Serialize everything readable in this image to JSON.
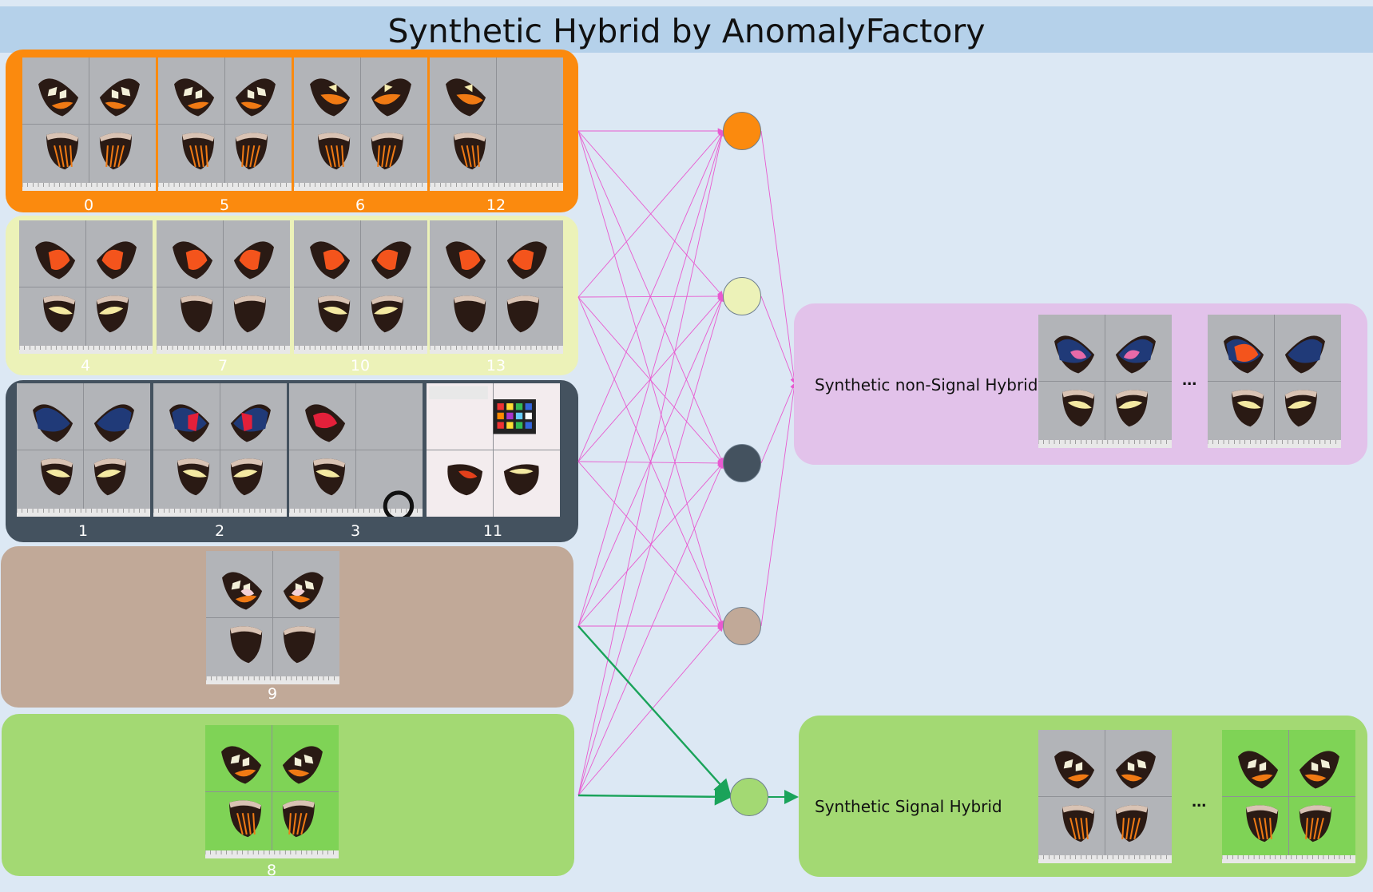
{
  "title": "Synthetic Hybrid by AnomalyFactory",
  "colors": {
    "background": "#dce8f4",
    "title_bar": "#b5d1ea",
    "orange": "#fb8a0e",
    "yellow": "#ecf2b8",
    "slate": "#44525f",
    "tan": "#c1a998",
    "green": "#a3d973",
    "pink": "#e2c2ea",
    "edge_pink": "#e85ad0",
    "edge_green": "#1aa35a"
  },
  "groups": [
    {
      "name": "orange",
      "items": [
        {
          "id": "0",
          "variant": "orange-white"
        },
        {
          "id": "5",
          "variant": "orange-white"
        },
        {
          "id": "6",
          "variant": "orange-rays"
        },
        {
          "id": "12",
          "variant": "single-orange"
        }
      ]
    },
    {
      "name": "yellow",
      "items": [
        {
          "id": "4",
          "variant": "red-yellow"
        },
        {
          "id": "7",
          "variant": "red-plain"
        },
        {
          "id": "10",
          "variant": "red-yellow"
        },
        {
          "id": "13",
          "variant": "red-plain"
        }
      ]
    },
    {
      "name": "slate",
      "items": [
        {
          "id": "1",
          "variant": "blue"
        },
        {
          "id": "2",
          "variant": "blue-red"
        },
        {
          "id": "3",
          "variant": "single-red"
        },
        {
          "id": "11",
          "variant": "chart"
        }
      ]
    },
    {
      "name": "tan",
      "items": [
        {
          "id": "9",
          "variant": "white-spots"
        }
      ]
    },
    {
      "name": "green",
      "items": [
        {
          "id": "8",
          "variant": "green-bg"
        }
      ]
    }
  ],
  "outputs": {
    "non_signal": {
      "label": "Synthetic non-Signal Hybrid",
      "ellipsis": "...",
      "images": [
        "blue-pink",
        "red-blue"
      ]
    },
    "signal": {
      "label": "Synthetic Signal Hybrid",
      "ellipsis": "...",
      "images": [
        "orange-white",
        "green-bg"
      ]
    }
  }
}
